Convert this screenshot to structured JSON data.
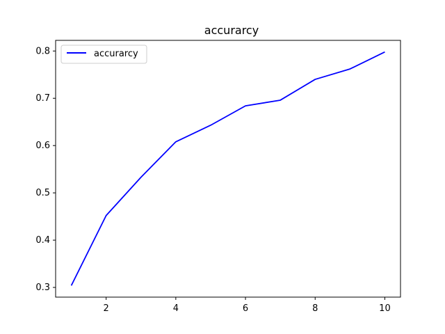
{
  "chart_data": {
    "type": "line",
    "title": "accurarcy",
    "xlabel": "",
    "ylabel": "",
    "x": [
      1,
      2,
      3,
      4,
      5,
      6,
      7,
      8,
      9,
      10
    ],
    "series": [
      {
        "name": "accurarcy",
        "color": "#0000ff",
        "values": [
          0.304,
          0.452,
          0.533,
          0.608,
          0.643,
          0.684,
          0.696,
          0.74,
          0.762,
          0.798
        ]
      }
    ],
    "xlim": [
      0.55,
      10.45
    ],
    "ylim": [
      0.2795,
      0.8225
    ],
    "xticks": [
      2,
      4,
      6,
      8,
      10
    ],
    "yticks": [
      0.3,
      0.4,
      0.5,
      0.6,
      0.7,
      0.8
    ],
    "xtick_labels": [
      "2",
      "4",
      "6",
      "8",
      "10"
    ],
    "ytick_labels": [
      "0.3",
      "0.4",
      "0.5",
      "0.6",
      "0.7",
      "0.8"
    ],
    "grid": false,
    "legend_position": "upper-left"
  }
}
